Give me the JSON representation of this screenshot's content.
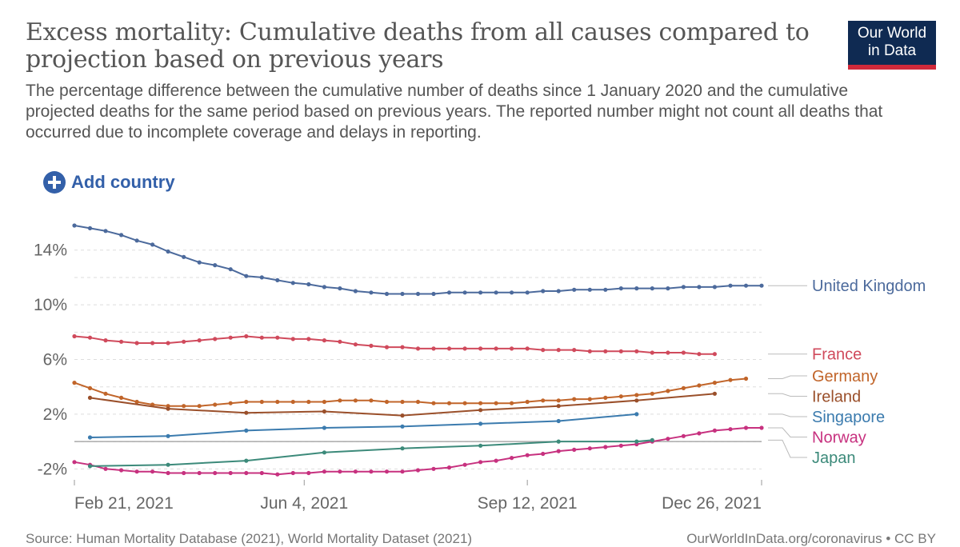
{
  "header": {
    "title": "Excess mortality: Cumulative deaths from all causes compared to projection based on previous years",
    "subtitle": "The percentage difference between the cumulative number of deaths since 1 January 2020 and the cumulative projected deaths for the same period based on previous years. The reported number might not count all deaths that occurred due to incomplete coverage and delays in reporting."
  },
  "logo": {
    "line1": "Our World",
    "line2": "in Data"
  },
  "controls": {
    "add_country_label": "Add country"
  },
  "footer": {
    "source": "Source: Human Mortality Database (2021), World Mortality Dataset (2021)",
    "url": "OurWorldInData.org/coronavirus • CC BY"
  },
  "colors": {
    "United Kingdom": "#4c6a9c",
    "France": "#d04a5c",
    "Germany": "#c1652a",
    "Ireland": "#9a4f2a",
    "Singapore": "#3b7bae",
    "Norway": "#c7317f",
    "Japan": "#3c8a7a",
    "accent": "#3360a9",
    "logo_bg": "#0f2a52",
    "logo_bar": "#d0293a"
  },
  "chart_data": {
    "type": "line",
    "title": "Excess mortality: Cumulative deaths from all causes compared to projection based on previous years",
    "x_ticks": [
      {
        "date": "2021-02-21",
        "label": "Feb 21, 2021"
      },
      {
        "date": "2021-06-04",
        "label": "Jun 4, 2021"
      },
      {
        "date": "2021-09-12",
        "label": "Sep 12, 2021"
      },
      {
        "date": "2021-12-26",
        "label": "Dec 26, 2021"
      }
    ],
    "y_ticks": [
      {
        "value": -2,
        "label": "-2%"
      },
      {
        "value": 2,
        "label": "2%"
      },
      {
        "value": 6,
        "label": "6%"
      },
      {
        "value": 10,
        "label": "10%"
      },
      {
        "value": 14,
        "label": "14%"
      }
    ],
    "xlim": [
      "2021-02-21",
      "2021-12-26"
    ],
    "ylim": [
      -2.8,
      16.5
    ],
    "grid": "horizontal dashed",
    "legend": "right, labels at line ends",
    "series": [
      {
        "name": "United Kingdom",
        "values": [
          [
            "2021-02-21",
            15.8
          ],
          [
            "2021-02-28",
            15.6
          ],
          [
            "2021-03-07",
            15.4
          ],
          [
            "2021-03-14",
            15.1
          ],
          [
            "2021-03-21",
            14.7
          ],
          [
            "2021-03-28",
            14.4
          ],
          [
            "2021-04-04",
            13.9
          ],
          [
            "2021-04-11",
            13.5
          ],
          [
            "2021-04-18",
            13.1
          ],
          [
            "2021-04-25",
            12.9
          ],
          [
            "2021-05-02",
            12.6
          ],
          [
            "2021-05-09",
            12.1
          ],
          [
            "2021-05-16",
            12.0
          ],
          [
            "2021-05-23",
            11.8
          ],
          [
            "2021-05-30",
            11.6
          ],
          [
            "2021-06-06",
            11.5
          ],
          [
            "2021-06-13",
            11.3
          ],
          [
            "2021-06-20",
            11.2
          ],
          [
            "2021-06-27",
            11.0
          ],
          [
            "2021-07-04",
            10.9
          ],
          [
            "2021-07-11",
            10.8
          ],
          [
            "2021-07-18",
            10.8
          ],
          [
            "2021-07-25",
            10.8
          ],
          [
            "2021-08-01",
            10.8
          ],
          [
            "2021-08-08",
            10.9
          ],
          [
            "2021-08-15",
            10.9
          ],
          [
            "2021-08-22",
            10.9
          ],
          [
            "2021-08-29",
            10.9
          ],
          [
            "2021-09-05",
            10.9
          ],
          [
            "2021-09-12",
            10.9
          ],
          [
            "2021-09-19",
            11.0
          ],
          [
            "2021-09-26",
            11.0
          ],
          [
            "2021-10-03",
            11.1
          ],
          [
            "2021-10-10",
            11.1
          ],
          [
            "2021-10-17",
            11.1
          ],
          [
            "2021-10-24",
            11.2
          ],
          [
            "2021-10-31",
            11.2
          ],
          [
            "2021-11-07",
            11.2
          ],
          [
            "2021-11-14",
            11.2
          ],
          [
            "2021-11-21",
            11.3
          ],
          [
            "2021-11-28",
            11.3
          ],
          [
            "2021-12-05",
            11.3
          ],
          [
            "2021-12-12",
            11.4
          ],
          [
            "2021-12-19",
            11.4
          ],
          [
            "2021-12-26",
            11.4
          ]
        ]
      },
      {
        "name": "France",
        "values": [
          [
            "2021-02-21",
            7.7
          ],
          [
            "2021-02-28",
            7.6
          ],
          [
            "2021-03-07",
            7.4
          ],
          [
            "2021-03-14",
            7.3
          ],
          [
            "2021-03-21",
            7.2
          ],
          [
            "2021-03-28",
            7.2
          ],
          [
            "2021-04-04",
            7.2
          ],
          [
            "2021-04-11",
            7.3
          ],
          [
            "2021-04-18",
            7.4
          ],
          [
            "2021-04-25",
            7.5
          ],
          [
            "2021-05-02",
            7.6
          ],
          [
            "2021-05-09",
            7.7
          ],
          [
            "2021-05-16",
            7.6
          ],
          [
            "2021-05-23",
            7.6
          ],
          [
            "2021-05-30",
            7.5
          ],
          [
            "2021-06-06",
            7.5
          ],
          [
            "2021-06-13",
            7.4
          ],
          [
            "2021-06-20",
            7.3
          ],
          [
            "2021-06-27",
            7.1
          ],
          [
            "2021-07-04",
            7.0
          ],
          [
            "2021-07-11",
            6.9
          ],
          [
            "2021-07-18",
            6.9
          ],
          [
            "2021-07-25",
            6.8
          ],
          [
            "2021-08-01",
            6.8
          ],
          [
            "2021-08-08",
            6.8
          ],
          [
            "2021-08-15",
            6.8
          ],
          [
            "2021-08-22",
            6.8
          ],
          [
            "2021-08-29",
            6.8
          ],
          [
            "2021-09-05",
            6.8
          ],
          [
            "2021-09-12",
            6.8
          ],
          [
            "2021-09-19",
            6.7
          ],
          [
            "2021-09-26",
            6.7
          ],
          [
            "2021-10-03",
            6.7
          ],
          [
            "2021-10-10",
            6.6
          ],
          [
            "2021-10-17",
            6.6
          ],
          [
            "2021-10-24",
            6.6
          ],
          [
            "2021-10-31",
            6.6
          ],
          [
            "2021-11-07",
            6.5
          ],
          [
            "2021-11-14",
            6.5
          ],
          [
            "2021-11-21",
            6.5
          ],
          [
            "2021-11-28",
            6.4
          ],
          [
            "2021-12-05",
            6.4
          ]
        ]
      },
      {
        "name": "Germany",
        "values": [
          [
            "2021-02-21",
            4.3
          ],
          [
            "2021-02-28",
            3.9
          ],
          [
            "2021-03-07",
            3.5
          ],
          [
            "2021-03-14",
            3.2
          ],
          [
            "2021-03-21",
            2.9
          ],
          [
            "2021-03-28",
            2.7
          ],
          [
            "2021-04-04",
            2.6
          ],
          [
            "2021-04-11",
            2.6
          ],
          [
            "2021-04-18",
            2.6
          ],
          [
            "2021-04-25",
            2.7
          ],
          [
            "2021-05-02",
            2.8
          ],
          [
            "2021-05-09",
            2.9
          ],
          [
            "2021-05-16",
            2.9
          ],
          [
            "2021-05-23",
            2.9
          ],
          [
            "2021-05-30",
            2.9
          ],
          [
            "2021-06-06",
            2.9
          ],
          [
            "2021-06-13",
            2.9
          ],
          [
            "2021-06-20",
            3.0
          ],
          [
            "2021-06-27",
            3.0
          ],
          [
            "2021-07-04",
            3.0
          ],
          [
            "2021-07-11",
            2.9
          ],
          [
            "2021-07-18",
            2.9
          ],
          [
            "2021-07-25",
            2.9
          ],
          [
            "2021-08-01",
            2.8
          ],
          [
            "2021-08-08",
            2.8
          ],
          [
            "2021-08-15",
            2.8
          ],
          [
            "2021-08-22",
            2.8
          ],
          [
            "2021-08-29",
            2.8
          ],
          [
            "2021-09-05",
            2.8
          ],
          [
            "2021-09-12",
            2.9
          ],
          [
            "2021-09-19",
            3.0
          ],
          [
            "2021-09-26",
            3.0
          ],
          [
            "2021-10-03",
            3.1
          ],
          [
            "2021-10-10",
            3.1
          ],
          [
            "2021-10-17",
            3.2
          ],
          [
            "2021-10-24",
            3.3
          ],
          [
            "2021-10-31",
            3.4
          ],
          [
            "2021-11-07",
            3.5
          ],
          [
            "2021-11-14",
            3.7
          ],
          [
            "2021-11-21",
            3.9
          ],
          [
            "2021-11-28",
            4.1
          ],
          [
            "2021-12-05",
            4.3
          ],
          [
            "2021-12-12",
            4.5
          ],
          [
            "2021-12-19",
            4.6
          ]
        ]
      },
      {
        "name": "Ireland",
        "values": [
          [
            "2021-02-28",
            3.2
          ],
          [
            "2021-04-04",
            2.4
          ],
          [
            "2021-05-09",
            2.1
          ],
          [
            "2021-06-13",
            2.2
          ],
          [
            "2021-07-18",
            1.9
          ],
          [
            "2021-08-22",
            2.3
          ],
          [
            "2021-09-26",
            2.6
          ],
          [
            "2021-10-31",
            3.0
          ],
          [
            "2021-12-05",
            3.5
          ]
        ]
      },
      {
        "name": "Singapore",
        "values": [
          [
            "2021-02-28",
            0.3
          ],
          [
            "2021-04-04",
            0.4
          ],
          [
            "2021-05-09",
            0.8
          ],
          [
            "2021-06-13",
            1.0
          ],
          [
            "2021-07-18",
            1.1
          ],
          [
            "2021-08-22",
            1.3
          ],
          [
            "2021-09-26",
            1.5
          ],
          [
            "2021-10-31",
            2.0
          ]
        ]
      },
      {
        "name": "Norway",
        "values": [
          [
            "2021-02-21",
            -1.5
          ],
          [
            "2021-02-28",
            -1.7
          ],
          [
            "2021-03-07",
            -2.0
          ],
          [
            "2021-03-14",
            -2.1
          ],
          [
            "2021-03-21",
            -2.2
          ],
          [
            "2021-03-28",
            -2.2
          ],
          [
            "2021-04-04",
            -2.3
          ],
          [
            "2021-04-11",
            -2.3
          ],
          [
            "2021-04-18",
            -2.3
          ],
          [
            "2021-04-25",
            -2.3
          ],
          [
            "2021-05-02",
            -2.3
          ],
          [
            "2021-05-09",
            -2.3
          ],
          [
            "2021-05-16",
            -2.3
          ],
          [
            "2021-05-23",
            -2.4
          ],
          [
            "2021-05-30",
            -2.3
          ],
          [
            "2021-06-06",
            -2.3
          ],
          [
            "2021-06-13",
            -2.2
          ],
          [
            "2021-06-20",
            -2.2
          ],
          [
            "2021-06-27",
            -2.2
          ],
          [
            "2021-07-04",
            -2.2
          ],
          [
            "2021-07-11",
            -2.2
          ],
          [
            "2021-07-18",
            -2.2
          ],
          [
            "2021-07-25",
            -2.1
          ],
          [
            "2021-08-01",
            -2.0
          ],
          [
            "2021-08-08",
            -1.9
          ],
          [
            "2021-08-15",
            -1.7
          ],
          [
            "2021-08-22",
            -1.5
          ],
          [
            "2021-08-29",
            -1.4
          ],
          [
            "2021-09-05",
            -1.2
          ],
          [
            "2021-09-12",
            -1.0
          ],
          [
            "2021-09-19",
            -0.9
          ],
          [
            "2021-09-26",
            -0.7
          ],
          [
            "2021-10-03",
            -0.6
          ],
          [
            "2021-10-10",
            -0.5
          ],
          [
            "2021-10-17",
            -0.4
          ],
          [
            "2021-10-24",
            -0.3
          ],
          [
            "2021-10-31",
            -0.2
          ],
          [
            "2021-11-07",
            0.0
          ],
          [
            "2021-11-14",
            0.2
          ],
          [
            "2021-11-21",
            0.4
          ],
          [
            "2021-11-28",
            0.6
          ],
          [
            "2021-12-05",
            0.8
          ],
          [
            "2021-12-12",
            0.9
          ],
          [
            "2021-12-19",
            1.0
          ],
          [
            "2021-12-26",
            1.0
          ]
        ]
      },
      {
        "name": "Japan",
        "values": [
          [
            "2021-02-28",
            -1.8
          ],
          [
            "2021-04-04",
            -1.7
          ],
          [
            "2021-05-09",
            -1.4
          ],
          [
            "2021-06-13",
            -0.8
          ],
          [
            "2021-07-18",
            -0.5
          ],
          [
            "2021-08-22",
            -0.3
          ],
          [
            "2021-09-26",
            0.0
          ],
          [
            "2021-10-31",
            0.0
          ],
          [
            "2021-11-07",
            0.1
          ]
        ]
      }
    ]
  }
}
